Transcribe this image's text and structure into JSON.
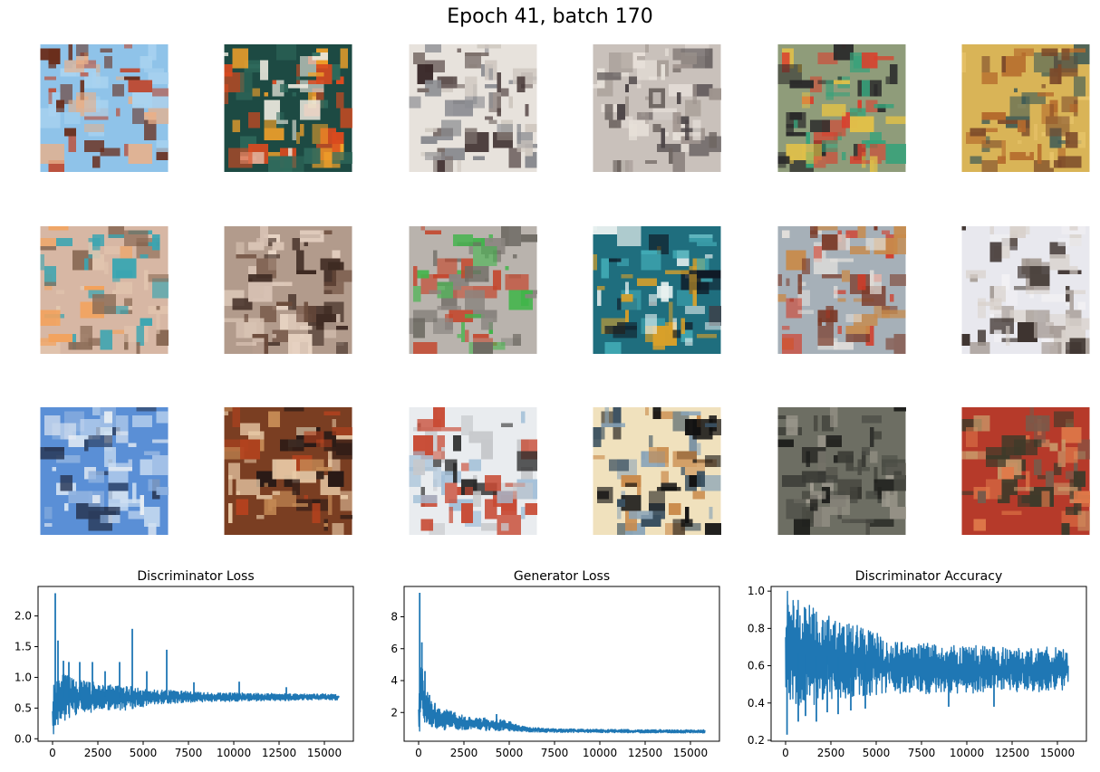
{
  "figure": {
    "title": "Epoch 41, batch 170"
  },
  "samples": {
    "grid": "3x6 generated images",
    "images": [
      {
        "colors": [
          "#8fc3e9",
          "#a9d3f0",
          "#c0452a",
          "#6a2e1c",
          "#e8b08a"
        ]
      },
      {
        "colors": [
          "#1d4a43",
          "#2f6a5c",
          "#e9e7dc",
          "#f1a12a",
          "#d94a1f"
        ]
      },
      {
        "colors": [
          "#e7e2dc",
          "#cfc8c0",
          "#7a6e6a",
          "#3a2a2a",
          "#8a8b90"
        ]
      },
      {
        "colors": [
          "#c9c1bb",
          "#9e948e",
          "#4c4547",
          "#e6dfd8",
          "#6d6460"
        ]
      },
      {
        "colors": [
          "#8f9c7a",
          "#e0c049",
          "#d8412e",
          "#37a27a",
          "#2a2a2a"
        ]
      },
      {
        "colors": [
          "#d9b457",
          "#b46a2c",
          "#7c4a2a",
          "#e8c46a",
          "#3e5a56"
        ]
      },
      {
        "colors": [
          "#d7b7a4",
          "#8a6a55",
          "#e3c7b0",
          "#3aa5b2",
          "#f3a25c"
        ]
      },
      {
        "colors": [
          "#b29b8c",
          "#3e2a22",
          "#d9c3b4",
          "#6a4a3a",
          "#e8d4c4"
        ]
      },
      {
        "colors": [
          "#b9b3ad",
          "#6f6b64",
          "#41b54a",
          "#c4462c",
          "#8a8580"
        ]
      },
      {
        "colors": [
          "#1f6e7e",
          "#41a9b4",
          "#0f1a26",
          "#e9f1f0",
          "#d8a02a"
        ]
      },
      {
        "colors": [
          "#a6b0b8",
          "#d33a26",
          "#7b3a28",
          "#e3e0dc",
          "#c88a4a"
        ]
      },
      {
        "colors": [
          "#e8e8ee",
          "#a69c96",
          "#3e3430",
          "#d9d2cc",
          "#f2f1f4"
        ]
      },
      {
        "colors": [
          "#5a8fd6",
          "#cfe0f2",
          "#2b3b5a",
          "#e9eef4",
          "#8fb2e0"
        ]
      },
      {
        "colors": [
          "#7a3e22",
          "#c58a55",
          "#2a1a16",
          "#e8c9a6",
          "#b4421e"
        ]
      },
      {
        "colors": [
          "#e9ecef",
          "#c7c9cc",
          "#c84b35",
          "#2a2a2a",
          "#a3c0d8"
        ]
      },
      {
        "colors": [
          "#f0e1bd",
          "#3a5060",
          "#111111",
          "#c98a4a",
          "#8aa4b8"
        ]
      },
      {
        "colors": [
          "#6d6e63",
          "#4a4b44",
          "#1e1f1c",
          "#9e9a8e",
          "#3a3b35"
        ]
      },
      {
        "colors": [
          "#b63a2a",
          "#e07a4a",
          "#3e3a2a",
          "#c99a6a",
          "#7a5a4a"
        ]
      }
    ]
  },
  "chart_data": [
    {
      "type": "line",
      "title": "Discriminator Loss",
      "xlabel": "",
      "ylabel": "",
      "xlim": [
        -800,
        16600
      ],
      "ylim": [
        -0.04,
        2.48
      ],
      "xticks": [
        0,
        2500,
        5000,
        7500,
        10000,
        12500,
        15000
      ],
      "yticks": [
        0.0,
        0.5,
        1.0,
        1.5,
        2.0
      ],
      "ytick_labels": [
        "0.0",
        "0.5",
        "1.0",
        "1.5",
        "2.0"
      ],
      "color": "#1f77b4",
      "series": [
        {
          "x": [
            0,
            100,
            200,
            400,
            700,
            1000,
            1500,
            2000,
            2500,
            3000,
            3500,
            4000,
            4500,
            5000,
            5500,
            6000,
            7000,
            8000,
            9000,
            10000,
            11000,
            12000,
            13000,
            14000,
            15000,
            15800
          ],
          "low": [
            0.08,
            0.05,
            0.15,
            0.25,
            0.3,
            0.35,
            0.4,
            0.42,
            0.45,
            0.47,
            0.48,
            0.45,
            0.5,
            0.52,
            0.55,
            0.57,
            0.58,
            0.6,
            0.6,
            0.61,
            0.61,
            0.62,
            0.62,
            0.63,
            0.63,
            0.63
          ],
          "high": [
            0.75,
            1.0,
            1.1,
            1.1,
            1.05,
            1.0,
            0.95,
            0.95,
            0.9,
            0.9,
            0.88,
            0.85,
            0.85,
            0.82,
            0.8,
            0.8,
            0.78,
            0.76,
            0.75,
            0.75,
            0.74,
            0.74,
            0.74,
            0.73,
            0.73,
            0.73
          ],
          "spikes": [
            [
              150,
              2.37
            ],
            [
              300,
              1.6
            ],
            [
              600,
              1.27
            ],
            [
              900,
              1.25
            ],
            [
              1500,
              1.25
            ],
            [
              2200,
              1.25
            ],
            [
              2900,
              1.1
            ],
            [
              3700,
              1.25
            ],
            [
              4400,
              1.79
            ],
            [
              5200,
              1.1
            ],
            [
              6300,
              1.45
            ],
            [
              7800,
              0.92
            ],
            [
              10300,
              0.93
            ],
            [
              12900,
              0.84
            ]
          ]
        }
      ]
    },
    {
      "type": "line",
      "title": "Generator Loss",
      "xlabel": "",
      "ylabel": "",
      "xlim": [
        -800,
        16600
      ],
      "ylim": [
        0.2,
        9.9
      ],
      "xticks": [
        0,
        2500,
        5000,
        7500,
        10000,
        12500,
        15000
      ],
      "yticks": [
        2,
        4,
        6,
        8
      ],
      "ytick_labels": [
        "2",
        "4",
        "6",
        "8"
      ],
      "color": "#1f77b4",
      "series": [
        {
          "x": [
            0,
            100,
            200,
            400,
            700,
            1000,
            1500,
            2000,
            2500,
            3000,
            3500,
            4000,
            4500,
            5000,
            5500,
            6000,
            7000,
            8000,
            9000,
            10000,
            11000,
            12000,
            13000,
            14000,
            15000,
            15800
          ],
          "low": [
            0.6,
            1.0,
            1.2,
            1.1,
            1.0,
            0.95,
            0.9,
            0.9,
            0.9,
            0.88,
            0.87,
            0.85,
            0.85,
            0.82,
            0.8,
            0.78,
            0.76,
            0.75,
            0.74,
            0.74,
            0.73,
            0.72,
            0.72,
            0.72,
            0.72,
            0.72
          ],
          "high": [
            3.5,
            6.0,
            5.0,
            3.5,
            2.8,
            2.4,
            2.2,
            2.0,
            1.8,
            1.7,
            1.7,
            1.6,
            1.6,
            1.5,
            1.2,
            1.1,
            1.0,
            0.98,
            0.96,
            0.95,
            0.94,
            0.93,
            0.93,
            0.92,
            0.92,
            0.92
          ],
          "spikes": [
            [
              60,
              9.5
            ],
            [
              180,
              6.4
            ],
            [
              350,
              4.6
            ],
            [
              600,
              3.1
            ],
            [
              900,
              2.6
            ],
            [
              1800,
              2.1
            ],
            [
              4300,
              1.9
            ]
          ]
        }
      ]
    },
    {
      "type": "line",
      "title": "Discriminator Accuracy",
      "xlabel": "",
      "ylabel": "",
      "xlim": [
        -800,
        16600
      ],
      "ylim": [
        0.195,
        1.025
      ],
      "xticks": [
        0,
        2500,
        5000,
        7500,
        10000,
        12500,
        15000
      ],
      "yticks": [
        0.2,
        0.4,
        0.6,
        0.8,
        1.0
      ],
      "ytick_labels": [
        "0.2",
        "0.4",
        "0.6",
        "0.8",
        "1.0"
      ],
      "color": "#1f77b4",
      "series": [
        {
          "x": [
            0,
            100,
            200,
            400,
            700,
            1000,
            1500,
            2000,
            2500,
            3000,
            3500,
            4000,
            4500,
            5000,
            5500,
            6000,
            7000,
            8000,
            9000,
            10000,
            11000,
            12000,
            13000,
            14000,
            15000,
            15600
          ],
          "low": [
            0.45,
            0.4,
            0.42,
            0.4,
            0.38,
            0.38,
            0.38,
            0.4,
            0.42,
            0.42,
            0.43,
            0.43,
            0.43,
            0.44,
            0.44,
            0.45,
            0.45,
            0.45,
            0.45,
            0.45,
            0.46,
            0.46,
            0.46,
            0.46,
            0.46,
            0.48
          ],
          "high": [
            1.0,
            1.0,
            0.98,
            0.97,
            0.95,
            0.94,
            0.92,
            0.9,
            0.88,
            0.86,
            0.84,
            0.82,
            0.8,
            0.78,
            0.75,
            0.73,
            0.72,
            0.72,
            0.71,
            0.71,
            0.71,
            0.7,
            0.7,
            0.7,
            0.7,
            0.68
          ],
          "spikes": [
            [
              80,
              0.23
            ],
            [
              700,
              0.3
            ],
            [
              1100,
              0.33
            ],
            [
              1700,
              0.3
            ],
            [
              2300,
              0.35
            ],
            [
              2900,
              0.34
            ],
            [
              3600,
              0.36
            ],
            [
              4400,
              0.37
            ],
            [
              9000,
              0.38
            ],
            [
              11500,
              0.38
            ]
          ]
        }
      ]
    }
  ]
}
